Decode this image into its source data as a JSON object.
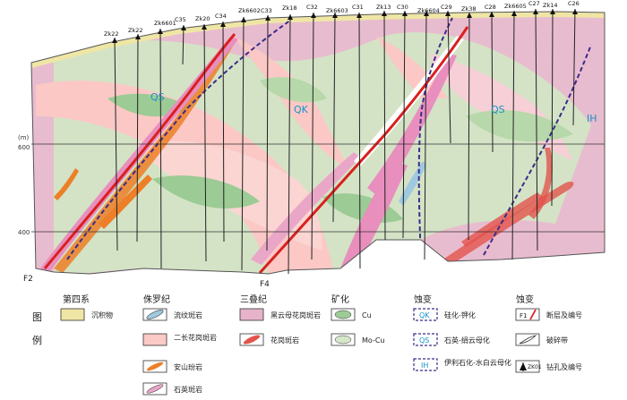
{
  "section": {
    "drillholes": [
      "Zk22",
      "Zk22",
      "Zk6601",
      "C35",
      "Zk20",
      "C34",
      "Zk6602",
      "C33",
      "Zk18",
      "C32",
      "Zk6603",
      "C31",
      "Zk13",
      "C30",
      "Zk6604",
      "C29",
      "Zk38",
      "C28",
      "Zk6605",
      "C27",
      "Zk14",
      "C26"
    ],
    "axis_unit": "(m)",
    "elevation_ticks": [
      "600",
      "400"
    ],
    "zone_labels": [
      "QS",
      "QK",
      "QS",
      "IH"
    ],
    "fault_labels": [
      "F2",
      "F4"
    ]
  },
  "legend": {
    "title": "图 例",
    "title_chars": [
      "图",
      "例"
    ],
    "groups": [
      {
        "heading": "第四系",
        "items": [
          {
            "label": "沉积物",
            "color": "#efe6a5"
          }
        ]
      },
      {
        "heading": "侏罗纪",
        "items": [
          {
            "label": "流纹斑岩",
            "color": "#9fc9df"
          },
          {
            "label": "二长花岗斑岩",
            "color": "#fbc9c6"
          },
          {
            "label": "安山玢岩",
            "color": "#ec7f27"
          },
          {
            "label": "石英斑岩",
            "color": "#eaa6c7"
          }
        ]
      },
      {
        "heading": "三叠纪",
        "items": [
          {
            "label": "黑云母花岗斑岩",
            "color": "#e6b3cb"
          },
          {
            "label": "花岗斑岩",
            "color": "#e2544c"
          }
        ]
      },
      {
        "heading": "矿化",
        "items": [
          {
            "label": "Cu",
            "color": "#9ccb95"
          },
          {
            "label": "Mo-Cu",
            "color": "#d7e6c9"
          }
        ]
      },
      {
        "heading": "蚀变",
        "items": [
          {
            "label": "硅化-钾化",
            "code": "QK"
          },
          {
            "label": "石英-绢云母化",
            "code": "QS"
          },
          {
            "label": "伊利石化-水白云母化",
            "code": "IH"
          }
        ]
      },
      {
        "heading": "蚀变",
        "items": [
          {
            "label": "断层及编号",
            "code": "F1"
          },
          {
            "label": "破碎带"
          },
          {
            "label": "钻孔及编号",
            "code": "ZK01"
          }
        ]
      }
    ]
  }
}
